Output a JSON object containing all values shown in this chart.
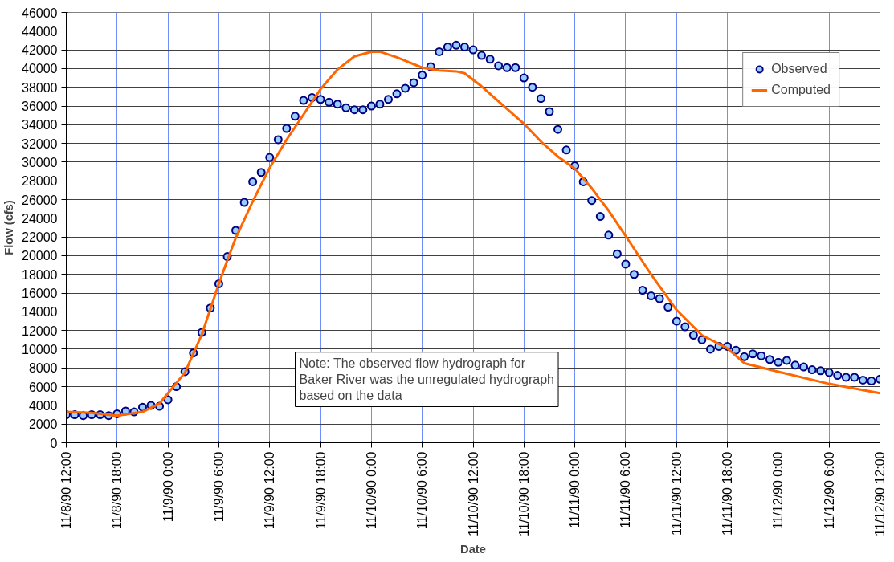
{
  "chart_data": {
    "type": "scatter",
    "xlabel": "Date",
    "ylabel": "Flow (cfs)",
    "xlim": [
      "1990-11-08T12:00",
      "1990-11-12T12:00"
    ],
    "xticks": [
      {
        "value": "1990-11-08T12:00",
        "label": "11/8/90 12:00"
      },
      {
        "value": "1990-11-08T18:00",
        "label": "11/8/90 18:00"
      },
      {
        "value": "1990-11-09T00:00",
        "label": "11/9/90 0:00"
      },
      {
        "value": "1990-11-09T06:00",
        "label": "11/9/90 6:00"
      },
      {
        "value": "1990-11-09T12:00",
        "label": "11/9/90 12:00"
      },
      {
        "value": "1990-11-09T18:00",
        "label": "11/9/90 18:00"
      },
      {
        "value": "1990-11-10T00:00",
        "label": "11/10/90 0:00"
      },
      {
        "value": "1990-11-10T06:00",
        "label": "11/10/90 6:00"
      },
      {
        "value": "1990-11-10T12:00",
        "label": "11/10/90 12:00"
      },
      {
        "value": "1990-11-10T18:00",
        "label": "11/10/90 18:00"
      },
      {
        "value": "1990-11-11T00:00",
        "label": "11/11/90 0:00"
      },
      {
        "value": "1990-11-11T06:00",
        "label": "11/11/90 6:00"
      },
      {
        "value": "1990-11-11T12:00",
        "label": "11/11/90 12:00"
      },
      {
        "value": "1990-11-11T18:00",
        "label": "11/11/90 18:00"
      },
      {
        "value": "1990-11-12T00:00",
        "label": "11/12/90 0:00"
      },
      {
        "value": "1990-11-12T06:00",
        "label": "11/12/90 6:00"
      },
      {
        "value": "1990-11-12T12:00",
        "label": "11/12/90 12:00"
      }
    ],
    "ylim": [
      0,
      46000
    ],
    "yticks": [
      0,
      2000,
      4000,
      6000,
      8000,
      10000,
      12000,
      14000,
      16000,
      18000,
      20000,
      22000,
      24000,
      26000,
      28000,
      30000,
      32000,
      34000,
      36000,
      38000,
      40000,
      42000,
      44000,
      46000
    ],
    "grid": true,
    "legend": "top right",
    "annotations": [
      "Note: The observed flow hydrograph for Baker River was the unregulated hydrograph based on the data"
    ],
    "series": [
      {
        "name": "Observed",
        "marker": "circle",
        "color": "#000080",
        "x": [
          "1990-11-08T12:00",
          "1990-11-08T13:00",
          "1990-11-08T14:00",
          "1990-11-08T15:00",
          "1990-11-08T16:00",
          "1990-11-08T17:00",
          "1990-11-08T18:00",
          "1990-11-08T19:00",
          "1990-11-08T20:00",
          "1990-11-08T21:00",
          "1990-11-08T22:00",
          "1990-11-08T23:00",
          "1990-11-09T00:00",
          "1990-11-09T01:00",
          "1990-11-09T02:00",
          "1990-11-09T03:00",
          "1990-11-09T04:00",
          "1990-11-09T05:00",
          "1990-11-09T06:00",
          "1990-11-09T07:00",
          "1990-11-09T08:00",
          "1990-11-09T09:00",
          "1990-11-09T10:00",
          "1990-11-09T11:00",
          "1990-11-09T12:00",
          "1990-11-09T13:00",
          "1990-11-09T14:00",
          "1990-11-09T15:00",
          "1990-11-09T16:00",
          "1990-11-09T17:00",
          "1990-11-09T18:00",
          "1990-11-09T19:00",
          "1990-11-09T20:00",
          "1990-11-09T21:00",
          "1990-11-09T22:00",
          "1990-11-09T23:00",
          "1990-11-10T00:00",
          "1990-11-10T01:00",
          "1990-11-10T02:00",
          "1990-11-10T03:00",
          "1990-11-10T04:00",
          "1990-11-10T05:00",
          "1990-11-10T06:00",
          "1990-11-10T07:00",
          "1990-11-10T08:00",
          "1990-11-10T09:00",
          "1990-11-10T10:00",
          "1990-11-10T11:00",
          "1990-11-10T12:00",
          "1990-11-10T13:00",
          "1990-11-10T14:00",
          "1990-11-10T15:00",
          "1990-11-10T16:00",
          "1990-11-10T17:00",
          "1990-11-10T18:00",
          "1990-11-10T19:00",
          "1990-11-10T20:00",
          "1990-11-10T21:00",
          "1990-11-10T22:00",
          "1990-11-10T23:00",
          "1990-11-11T00:00",
          "1990-11-11T01:00",
          "1990-11-11T02:00",
          "1990-11-11T03:00",
          "1990-11-11T04:00",
          "1990-11-11T05:00",
          "1990-11-11T06:00",
          "1990-11-11T07:00",
          "1990-11-11T08:00",
          "1990-11-11T09:00",
          "1990-11-11T10:00",
          "1990-11-11T11:00",
          "1990-11-11T12:00",
          "1990-11-11T13:00",
          "1990-11-11T14:00",
          "1990-11-11T15:00",
          "1990-11-11T16:00",
          "1990-11-11T17:00",
          "1990-11-11T18:00",
          "1990-11-11T19:00",
          "1990-11-11T20:00",
          "1990-11-11T21:00",
          "1990-11-11T22:00",
          "1990-11-11T23:00",
          "1990-11-12T00:00",
          "1990-11-12T01:00",
          "1990-11-12T02:00",
          "1990-11-12T03:00",
          "1990-11-12T04:00",
          "1990-11-12T05:00",
          "1990-11-12T06:00",
          "1990-11-12T07:00",
          "1990-11-12T08:00",
          "1990-11-12T09:00",
          "1990-11-12T10:00",
          "1990-11-12T11:00",
          "1990-11-12T12:00"
        ],
        "values": [
          3000,
          3000,
          2900,
          3000,
          3000,
          2900,
          3100,
          3400,
          3300,
          3800,
          4000,
          3900,
          4600,
          6000,
          7600,
          9600,
          11800,
          14400,
          17000,
          19900,
          22700,
          25700,
          27900,
          28900,
          30500,
          32400,
          33600,
          34900,
          36600,
          36900,
          36700,
          36400,
          36200,
          35800,
          35600,
          35600,
          36000,
          36200,
          36700,
          37300,
          37900,
          38500,
          39300,
          40200,
          41800,
          42300,
          42500,
          42300,
          42000,
          41400,
          41000,
          40300,
          40100,
          40100,
          39000,
          38000,
          36800,
          35400,
          33500,
          31300,
          29600,
          27900,
          25900,
          24200,
          22200,
          20200,
          19100,
          18000,
          16300,
          15700,
          15400,
          14500,
          13000,
          12400,
          11500,
          11000,
          10000,
          10300,
          10300,
          9900,
          9200,
          9500,
          9300,
          8900,
          8600,
          8800,
          8300,
          8100,
          7800,
          7700,
          7500,
          7200,
          7000,
          7000,
          6700,
          6600,
          6800
        ]
      },
      {
        "name": "Computed",
        "type": "line",
        "marker": "none",
        "line_style": "solid",
        "color": "#ff6600",
        "x": [
          "1990-11-08T12:00",
          "1990-11-08T15:00",
          "1990-11-08T18:00",
          "1990-11-08T21:00",
          "1990-11-08T23:00",
          "1990-11-09T00:00",
          "1990-11-09T02:00",
          "1990-11-09T04:00",
          "1990-11-09T06:00",
          "1990-11-09T07:00",
          "1990-11-09T08:00",
          "1990-11-09T10:00",
          "1990-11-09T12:00",
          "1990-11-09T14:00",
          "1990-11-09T16:00",
          "1990-11-09T18:00",
          "1990-11-09T20:00",
          "1990-11-09T22:00",
          "1990-11-10T00:00",
          "1990-11-10T01:00",
          "1990-11-10T03:00",
          "1990-11-10T06:00",
          "1990-11-10T08:00",
          "1990-11-10T10:00",
          "1990-11-10T11:00",
          "1990-11-10T13:00",
          "1990-11-10T16:00",
          "1990-11-10T18:00",
          "1990-11-10T20:00",
          "1990-11-10T22:00",
          "1990-11-11T00:00",
          "1990-11-11T02:00",
          "1990-11-11T04:00",
          "1990-11-11T06:00",
          "1990-11-11T09:00",
          "1990-11-11T12:00",
          "1990-11-11T15:00",
          "1990-11-11T18:00",
          "1990-11-11T20:00",
          "1990-11-12T00:00",
          "1990-11-12T06:00",
          "1990-11-12T12:00"
        ],
        "values": [
          3300,
          3200,
          2900,
          3300,
          4200,
          5300,
          7500,
          11600,
          17000,
          19500,
          21900,
          25800,
          29400,
          32400,
          35100,
          37800,
          39900,
          41300,
          41800,
          41800,
          41200,
          40100,
          39800,
          39700,
          39500,
          38100,
          35700,
          34100,
          32200,
          30600,
          29300,
          27200,
          24800,
          22100,
          18000,
          14200,
          11500,
          10100,
          8500,
          7600,
          6300,
          5300
        ]
      }
    ]
  }
}
